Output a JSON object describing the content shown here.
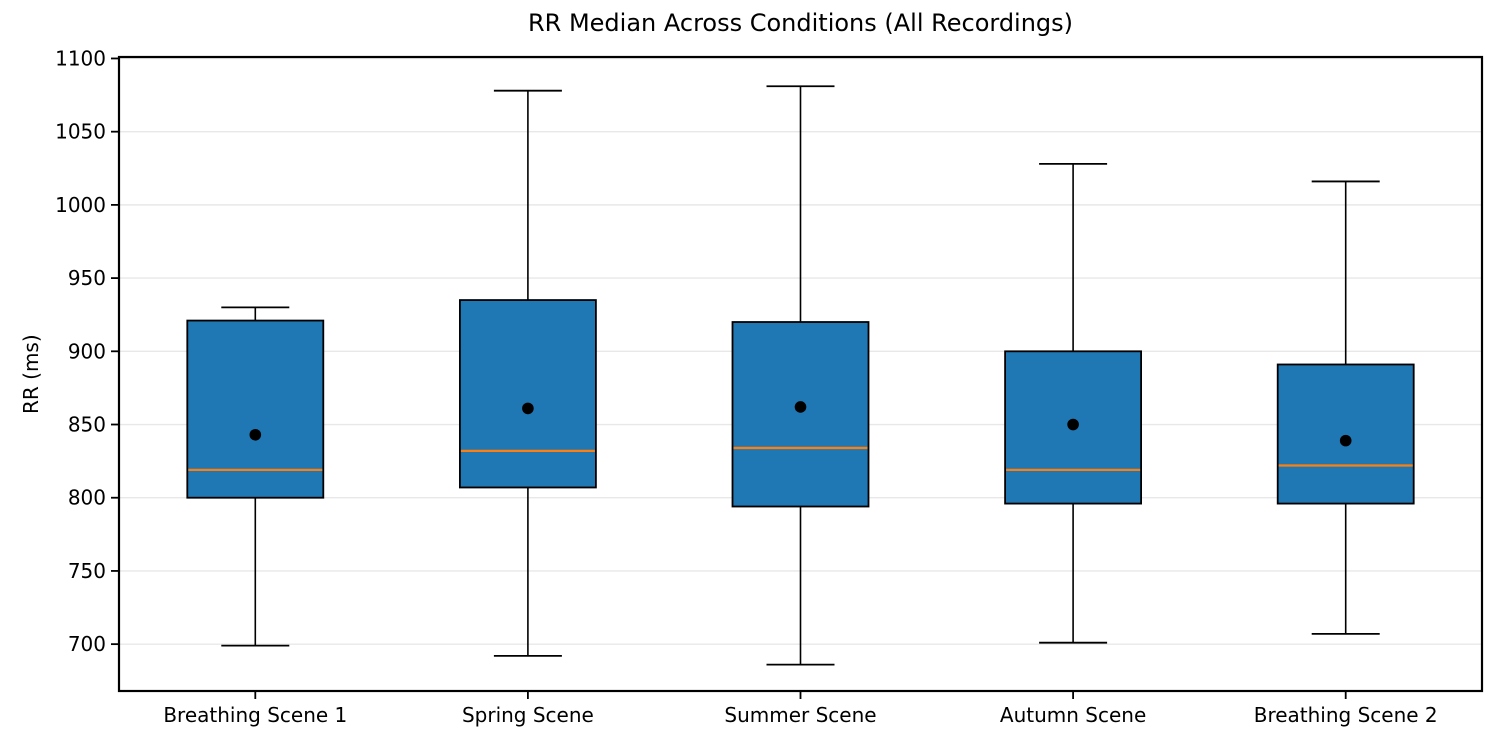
{
  "page": {
    "background_color": "#ffffff"
  },
  "chart_data": {
    "type": "box",
    "title": "RR Median Across Conditions (All Recordings)",
    "xlabel": "",
    "ylabel": "RR (ms)",
    "categories": [
      "Breathing Scene 1",
      "Spring Scene",
      "Summer Scene",
      "Autumn Scene",
      "Breathing Scene 2"
    ],
    "boxes": [
      {
        "label": "Breathing Scene 1",
        "whisker_low": 699,
        "q1": 800,
        "median": 819,
        "mean": 843,
        "q3": 921,
        "whisker_high": 930
      },
      {
        "label": "Spring Scene",
        "whisker_low": 692,
        "q1": 807,
        "median": 832,
        "mean": 861,
        "q3": 935,
        "whisker_high": 1078
      },
      {
        "label": "Summer Scene",
        "whisker_low": 686,
        "q1": 794,
        "median": 834,
        "mean": 862,
        "q3": 920,
        "whisker_high": 1081
      },
      {
        "label": "Autumn Scene",
        "whisker_low": 701,
        "q1": 796,
        "median": 819,
        "mean": 850,
        "q3": 900,
        "whisker_high": 1028
      },
      {
        "label": "Breathing Scene 2",
        "whisker_low": 707,
        "q1": 796,
        "median": 822,
        "mean": 839,
        "q3": 891,
        "whisker_high": 1016
      }
    ],
    "yticks": [
      700,
      750,
      800,
      850,
      900,
      950,
      1000,
      1050,
      1100
    ],
    "ylim": [
      668,
      1101
    ],
    "grid": "horizontal-light",
    "legend": "none",
    "mean_marker": "filled-black-circle",
    "colors": {
      "box_fill": "#1f77b4",
      "box_edge": "#000000",
      "median_line": "#ff7f0e",
      "whisker": "#000000",
      "mean_marker": "#000000",
      "grid": "#e8e8e8",
      "spine": "#000000",
      "text": "#000000"
    }
  }
}
